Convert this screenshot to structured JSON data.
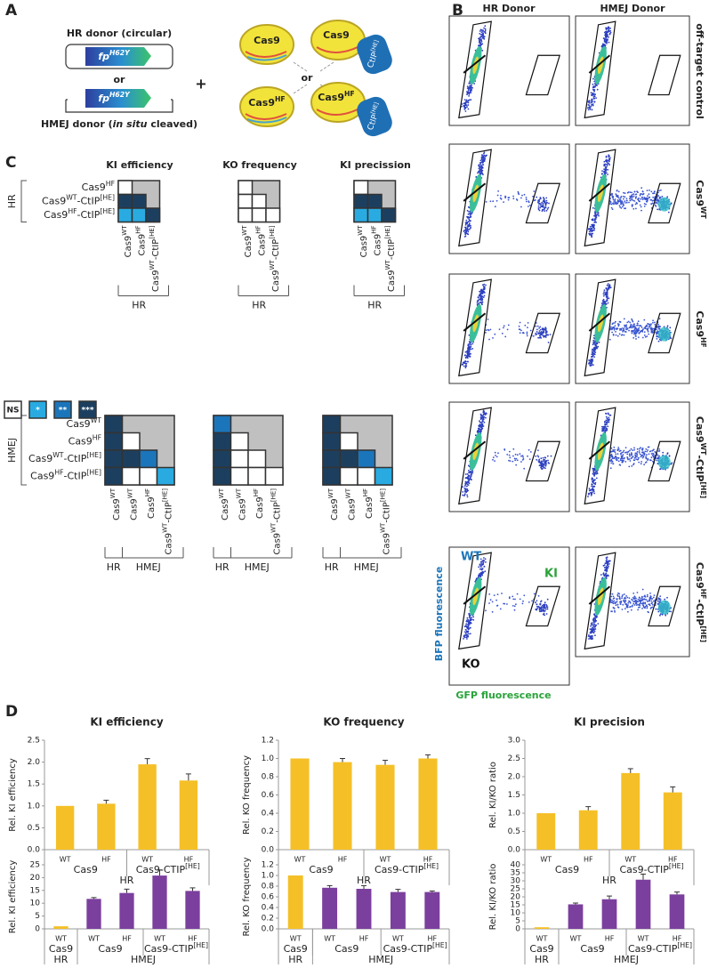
{
  "panel_a": {
    "label": "A",
    "hr_donor": "HR donor (circular)",
    "gene": [
      {
        "t": "fp"
      },
      {
        "sup": "H62Y"
      }
    ],
    "or": "or",
    "hmej_donor": [
      {
        "t": "HMEJ donor ("
      },
      {
        "i": "in situ"
      },
      {
        "t": " cleaved)"
      }
    ],
    "plus": "+",
    "cas9": "Cas9",
    "cas9hf": [
      {
        "t": "Cas9"
      },
      {
        "sup": "HF"
      }
    ],
    "ctip": [
      {
        "t": "CtIP"
      },
      {
        "sup": "[HE]"
      }
    ]
  },
  "panel_b": {
    "label": "B",
    "columns": [
      "HR Donor",
      "HMEJ Donor"
    ],
    "rows": [
      [
        {
          "t": "off-target control"
        }
      ],
      [
        {
          "t": "Cas9"
        },
        {
          "sup": "WT"
        }
      ],
      [
        {
          "t": "Cas9"
        },
        {
          "sup": "HF"
        }
      ],
      [
        {
          "t": "Cas9"
        },
        {
          "sup": "WT"
        },
        {
          "t": "-CtIP"
        },
        {
          "sup": "[HE]"
        }
      ],
      [
        {
          "t": "Cas9"
        },
        {
          "sup": "HF"
        },
        {
          "t": "-CtIP"
        },
        {
          "sup": "[HE]"
        }
      ]
    ],
    "gates": {
      "wt": "WT",
      "ki": "KI",
      "ko": "KO"
    },
    "y_axis": "BFP fluorescence",
    "x_axis": "GFP fluorescence"
  },
  "panel_c": {
    "label": "C",
    "titles": [
      "KI efficiency",
      "KO frequency",
      "KI precission"
    ],
    "hr": {
      "group": "HR",
      "rows": [
        [
          {
            "t": "Cas9"
          },
          {
            "sup": "HF"
          }
        ],
        [
          {
            "t": "Cas9"
          },
          {
            "sup": "WT"
          },
          {
            "t": "-CtIP"
          },
          {
            "sup": "[HE]"
          }
        ],
        [
          {
            "t": "Cas9"
          },
          {
            "sup": "HF"
          },
          {
            "t": "-CtIP"
          },
          {
            "sup": "[HE]"
          }
        ]
      ],
      "cols": [
        [
          {
            "t": "Cas9"
          },
          {
            "sup": "WT"
          }
        ],
        [
          {
            "t": "Cas9"
          },
          {
            "sup": "HF"
          }
        ],
        [
          {
            "t": "Cas9"
          },
          {
            "sup": "WT"
          },
          {
            "t": "-CtIP"
          },
          {
            "sup": "[HE]"
          }
        ]
      ],
      "col_groups": [
        "HR"
      ],
      "significance": [
        [
          [
            0
          ],
          [
            3,
            3
          ],
          [
            1,
            1,
            3
          ]
        ],
        [
          [
            0
          ],
          [
            0,
            0
          ],
          [
            0,
            0,
            0
          ]
        ],
        [
          [
            0
          ],
          [
            3,
            3
          ],
          [
            1,
            1,
            3
          ]
        ]
      ]
    },
    "hmej": {
      "group": "HMEJ",
      "rows": [
        [
          {
            "t": "Cas9"
          },
          {
            "sup": "WT"
          }
        ],
        [
          {
            "t": "Cas9"
          },
          {
            "sup": "HF"
          }
        ],
        [
          {
            "t": "Cas9"
          },
          {
            "sup": "WT"
          },
          {
            "t": "-CtIP"
          },
          {
            "sup": "[HE]"
          }
        ],
        [
          {
            "t": "Cas9"
          },
          {
            "sup": "HF"
          },
          {
            "t": "-CtIP"
          },
          {
            "sup": "[HE]"
          }
        ]
      ],
      "cols": [
        [
          {
            "t": "Cas9"
          },
          {
            "sup": "WT"
          }
        ],
        [
          {
            "t": "Cas9"
          },
          {
            "sup": "WT"
          }
        ],
        [
          {
            "t": "Cas9"
          },
          {
            "sup": "HF"
          }
        ],
        [
          {
            "t": "Cas9"
          },
          {
            "sup": "WT"
          },
          {
            "t": "-CtIP"
          },
          {
            "sup": "[HE]"
          }
        ]
      ],
      "col_groups": [
        "HR",
        "HMEJ"
      ],
      "significance": [
        [
          [
            3
          ],
          [
            3,
            0
          ],
          [
            3,
            3,
            2
          ],
          [
            3,
            0,
            0,
            1
          ]
        ],
        [
          [
            2
          ],
          [
            3,
            0
          ],
          [
            3,
            0,
            0
          ],
          [
            3,
            0,
            0,
            0
          ]
        ],
        [
          [
            3
          ],
          [
            3,
            0
          ],
          [
            3,
            3,
            2
          ],
          [
            3,
            0,
            0,
            1
          ]
        ]
      ]
    },
    "legend": [
      {
        "label": "NS",
        "color": "#ffffff"
      },
      {
        "label": "*",
        "color": "#29abe2"
      },
      {
        "label": "**",
        "color": "#1b75bb"
      },
      {
        "label": "***",
        "color": "#1d3f5f"
      }
    ]
  },
  "panel_d": {
    "label": "D"
  },
  "chart_data": [
    {
      "type": "bar",
      "title": "KI efficiency",
      "ylabel": "Rel. KI efficiency",
      "groups": [
        {
          "label": "HR",
          "subgroups": [
            {
              "label": [
                {
                  "t": "Cas9"
                }
              ],
              "categories": [
                "WT",
                "HF"
              ]
            },
            {
              "label": [
                {
                  "t": "Cas9-CTIP"
                },
                {
                  "sup": "[HE]"
                }
              ],
              "categories": [
                "WT",
                "HF"
              ]
            }
          ]
        }
      ],
      "values": [
        1.0,
        1.05,
        1.95,
        1.58
      ],
      "errors": [
        null,
        0.08,
        0.13,
        0.15
      ],
      "colors": [
        "#f5c027",
        "#f5c027",
        "#f5c027",
        "#f5c027"
      ],
      "ylim": [
        0,
        2.5
      ],
      "yticks": [
        {
          "value": 0,
          "label": "0.0"
        },
        0.5,
        {
          "value": 1,
          "label": "1.0"
        },
        1.5,
        {
          "value": 2,
          "label": "2.0"
        },
        2.5
      ]
    },
    {
      "type": "bar",
      "title": "KO frequency",
      "ylabel": "Rel. KO frequency",
      "groups": [
        {
          "label": "HR",
          "subgroups": [
            {
              "label": [
                {
                  "t": "Cas9"
                }
              ],
              "categories": [
                "WT",
                "HF"
              ]
            },
            {
              "label": [
                {
                  "t": "Cas9-CTIP"
                },
                {
                  "sup": "[HE]"
                }
              ],
              "categories": [
                "WT",
                "HF"
              ]
            }
          ]
        }
      ],
      "values": [
        1.0,
        0.96,
        0.93,
        1.0
      ],
      "errors": [
        null,
        0.04,
        0.05,
        0.04
      ],
      "colors": [
        "#f5c027",
        "#f5c027",
        "#f5c027",
        "#f5c027"
      ],
      "ylim": [
        0,
        1.2
      ],
      "yticks": [
        {
          "value": 0,
          "label": "0.0"
        },
        0.2,
        0.4,
        0.6,
        0.8,
        {
          "value": 1,
          "label": "1.0"
        },
        1.2
      ]
    },
    {
      "type": "bar",
      "title": "KI precision",
      "ylabel": "Rel. KI/KO ratio",
      "groups": [
        {
          "label": "HR",
          "subgroups": [
            {
              "label": [
                {
                  "t": "Cas9"
                }
              ],
              "categories": [
                "WT",
                "HF"
              ]
            },
            {
              "label": [
                {
                  "t": "Cas9-CTIP"
                },
                {
                  "sup": "[HE]"
                }
              ],
              "categories": [
                "WT",
                "HF"
              ]
            }
          ]
        }
      ],
      "values": [
        1.0,
        1.08,
        2.1,
        1.57
      ],
      "errors": [
        null,
        0.1,
        0.12,
        0.15
      ],
      "colors": [
        "#f5c027",
        "#f5c027",
        "#f5c027",
        "#f5c027"
      ],
      "ylim": [
        0,
        3
      ],
      "yticks": [
        {
          "value": 0,
          "label": "0.0"
        },
        0.5,
        {
          "value": 1,
          "label": "1.0"
        },
        1.5,
        {
          "value": 2,
          "label": "2.0"
        },
        2.5,
        {
          "value": 3,
          "label": "3.0"
        }
      ]
    },
    {
      "type": "bar",
      "ylabel": "Rel. KI efficiency",
      "groups": [
        {
          "label": "HR",
          "subgroups": [
            {
              "label": [
                {
                  "t": "Cas9"
                }
              ],
              "categories": [
                "WT"
              ]
            }
          ]
        },
        {
          "label": "HMEJ",
          "subgroups": [
            {
              "label": [
                {
                  "t": "Cas9"
                }
              ],
              "categories": [
                "WT",
                "HF"
              ]
            },
            {
              "label": [
                {
                  "t": "Cas9-CTIP"
                },
                {
                  "sup": "[HE]"
                }
              ],
              "categories": [
                "WT",
                "HF"
              ]
            }
          ]
        }
      ],
      "values": [
        1.0,
        11.7,
        14.0,
        20.8,
        14.8
      ],
      "errors": [
        null,
        0.5,
        1.5,
        2.2,
        1.2
      ],
      "colors": [
        "#f5c027",
        "#7b3f9e",
        "#7b3f9e",
        "#7b3f9e",
        "#7b3f9e"
      ],
      "ylim": [
        0,
        25
      ],
      "yticks": [
        0,
        5,
        10,
        15,
        20,
        25
      ]
    },
    {
      "type": "bar",
      "ylabel": "Rel. KO frequency",
      "groups": [
        {
          "label": "HR",
          "subgroups": [
            {
              "label": [
                {
                  "t": "Cas9"
                }
              ],
              "categories": [
                "WT"
              ]
            }
          ]
        },
        {
          "label": "HMEJ",
          "subgroups": [
            {
              "label": [
                {
                  "t": "Cas9"
                }
              ],
              "categories": [
                "WT",
                "HF"
              ]
            },
            {
              "label": [
                {
                  "t": "Cas9-CTIP"
                },
                {
                  "sup": "[HE]"
                }
              ],
              "categories": [
                "WT",
                "HF"
              ]
            }
          ]
        }
      ],
      "values": [
        1.0,
        0.77,
        0.75,
        0.69,
        0.69
      ],
      "errors": [
        null,
        0.04,
        0.06,
        0.05,
        0.02
      ],
      "colors": [
        "#f5c027",
        "#7b3f9e",
        "#7b3f9e",
        "#7b3f9e",
        "#7b3f9e"
      ],
      "ylim": [
        0,
        1.2
      ],
      "yticks": [
        {
          "value": 0,
          "label": "0.0"
        },
        0.2,
        0.4,
        0.6,
        0.8,
        {
          "value": 1,
          "label": "1.0"
        },
        1.2
      ]
    },
    {
      "type": "bar",
      "ylabel": "Rel. KI/KO ratio",
      "groups": [
        {
          "label": "HR",
          "subgroups": [
            {
              "label": [
                {
                  "t": "Cas9"
                }
              ],
              "categories": [
                "WT"
              ]
            }
          ]
        },
        {
          "label": "HMEJ",
          "subgroups": [
            {
              "label": [
                {
                  "t": "Cas9"
                }
              ],
              "categories": [
                "WT",
                "HF"
              ]
            },
            {
              "label": [
                {
                  "t": "Cas9-CTIP"
                },
                {
                  "sup": "[HE]"
                }
              ],
              "categories": [
                "WT",
                "HF"
              ]
            }
          ]
        }
      ],
      "values": [
        1.0,
        15.3,
        18.5,
        30.7,
        21.5
      ],
      "errors": [
        null,
        0.8,
        2.0,
        3.5,
        1.5
      ],
      "colors": [
        "#f5c027",
        "#7b3f9e",
        "#7b3f9e",
        "#7b3f9e",
        "#7b3f9e"
      ],
      "ylim": [
        0,
        40
      ],
      "yticks": [
        0,
        5,
        10,
        15,
        20,
        25,
        30,
        35,
        40
      ]
    }
  ]
}
